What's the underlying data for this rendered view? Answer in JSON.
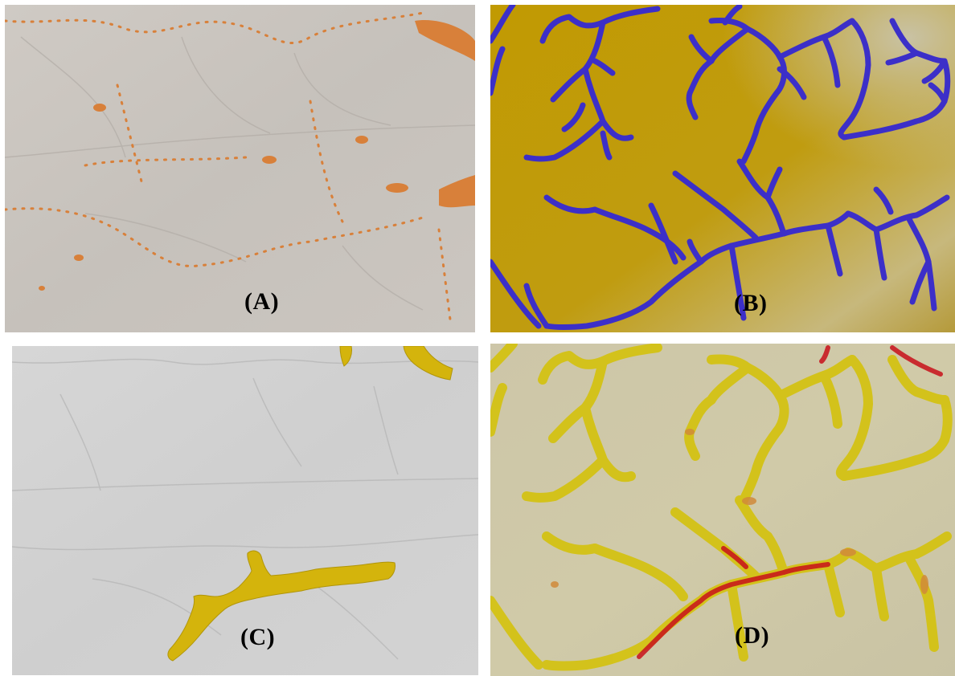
{
  "panels": [
    {
      "id": "a",
      "label": "(A)",
      "layer": "sinks",
      "overlay_color": "#d8803a",
      "base_color": "#c9c4be"
    },
    {
      "id": "b",
      "label": "(B)",
      "layer": "stream-network",
      "overlay_color": "#3c2fc8",
      "base_color": "#bf9a06"
    },
    {
      "id": "c",
      "label": "(C)",
      "layer": "valley-polygon",
      "overlay_color": "#d4b40c",
      "base_color": "#d2d2d2"
    },
    {
      "id": "d",
      "label": "(D)",
      "layer": "combined-classes",
      "overlay_color": "#d4c20c",
      "overlay_color_2": "#c8101a",
      "base_color": "#cdc7aa"
    }
  ]
}
